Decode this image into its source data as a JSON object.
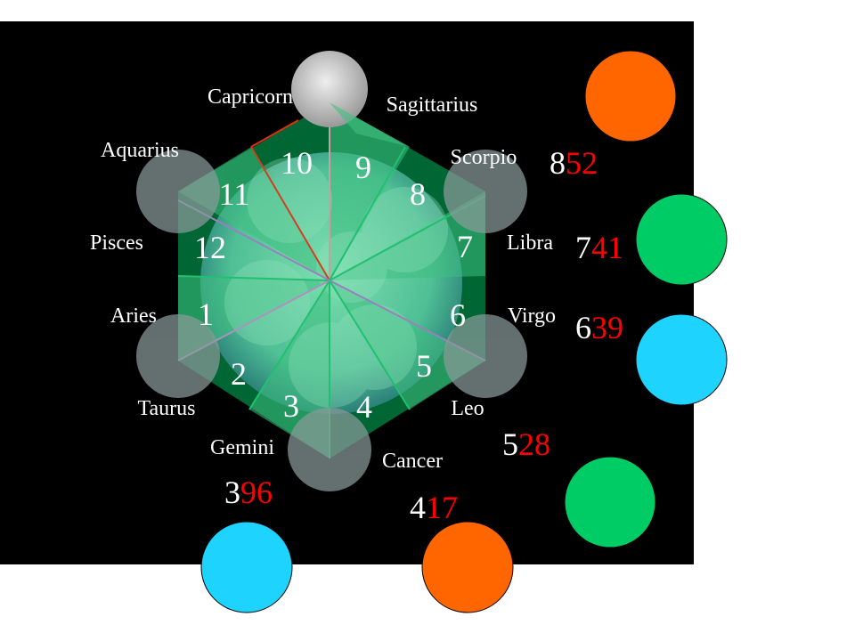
{
  "signs": [
    {
      "name": "Capricorn"
    },
    {
      "name": "Sagittarius"
    },
    {
      "name": "Aquarius"
    },
    {
      "name": "Scorpio"
    },
    {
      "name": "Pisces"
    },
    {
      "name": "Libra"
    },
    {
      "name": "Aries"
    },
    {
      "name": "Virgo"
    },
    {
      "name": "Taurus"
    },
    {
      "name": "Leo"
    },
    {
      "name": "Gemini"
    },
    {
      "name": "Cancer"
    }
  ],
  "houses": [
    "1",
    "2",
    "3",
    "4",
    "5",
    "6",
    "7",
    "8",
    "9",
    "10",
    "11",
    "12"
  ],
  "frequencies": [
    {
      "lead": "8",
      "rest": "52"
    },
    {
      "lead": "7",
      "rest": "41"
    },
    {
      "lead": "6",
      "rest": "39"
    },
    {
      "lead": "5",
      "rest": "28"
    },
    {
      "lead": "3",
      "rest": "96"
    },
    {
      "lead": "4",
      "rest": "17"
    }
  ],
  "colors": {
    "background": "#000000",
    "hexagon": "#006633",
    "orange": "#FF6600",
    "green": "#00CC66",
    "cyan": "#1FD3FF",
    "frequency_lead": "#FFFFFF",
    "frequency_rest": "#FF0000"
  }
}
